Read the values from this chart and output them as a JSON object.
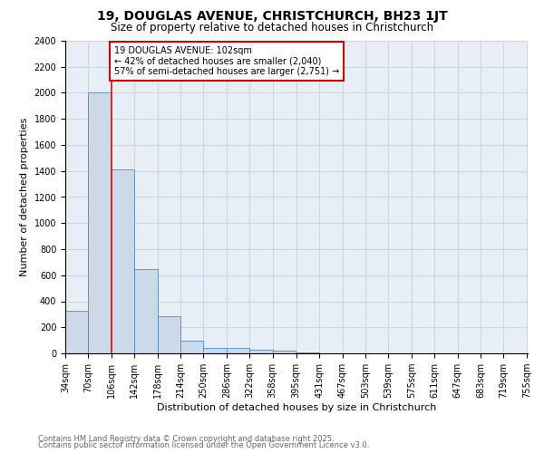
{
  "title1": "19, DOUGLAS AVENUE, CHRISTCHURCH, BH23 1JT",
  "title2": "Size of property relative to detached houses in Christchurch",
  "xlabel": "Distribution of detached houses by size in Christchurch",
  "ylabel": "Number of detached properties",
  "bar_color": "#ccd9e8",
  "bar_edge_color": "#5588bb",
  "grid_color": "#c8d4e4",
  "background_color": "#e8eef6",
  "fig_background": "#ffffff",
  "bin_labels": [
    "34sqm",
    "70sqm",
    "106sqm",
    "142sqm",
    "178sqm",
    "214sqm",
    "250sqm",
    "286sqm",
    "322sqm",
    "358sqm",
    "395sqm",
    "431sqm",
    "467sqm",
    "503sqm",
    "539sqm",
    "575sqm",
    "611sqm",
    "647sqm",
    "683sqm",
    "719sqm",
    "755sqm"
  ],
  "bar_heights": [
    325,
    2000,
    1410,
    650,
    285,
    100,
    45,
    40,
    25,
    20,
    5,
    2,
    1,
    1,
    0,
    0,
    0,
    0,
    0,
    0
  ],
  "bin_edges": [
    34,
    70,
    106,
    142,
    178,
    214,
    250,
    286,
    322,
    358,
    395,
    431,
    467,
    503,
    539,
    575,
    611,
    647,
    683,
    719,
    755
  ],
  "redline_x": 106,
  "ylim": [
    0,
    2400
  ],
  "yticks": [
    0,
    200,
    400,
    600,
    800,
    1000,
    1200,
    1400,
    1600,
    1800,
    2000,
    2200,
    2400
  ],
  "annotation_text": "19 DOUGLAS AVENUE: 102sqm\n← 42% of detached houses are smaller (2,040)\n57% of semi-detached houses are larger (2,751) →",
  "annotation_box_color": "#ffffff",
  "annotation_border_color": "#cc0000",
  "footnote1": "Contains HM Land Registry data © Crown copyright and database right 2025.",
  "footnote2": "Contains public sector information licensed under the Open Government Licence v3.0.",
  "title1_fontsize": 10,
  "title2_fontsize": 8.5,
  "axis_label_fontsize": 8,
  "tick_fontsize": 7,
  "annot_fontsize": 7,
  "footnote_fontsize": 6
}
